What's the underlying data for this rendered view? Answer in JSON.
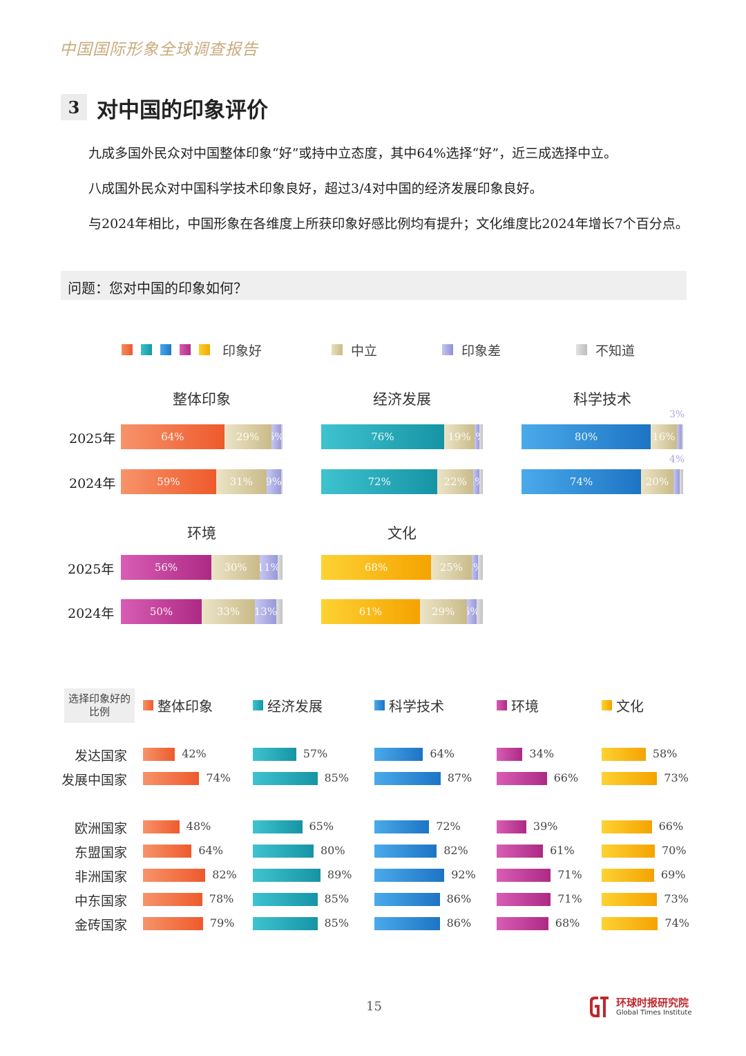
{
  "header": {
    "title": "中国国际形象全球调查报告"
  },
  "section": {
    "number": "3",
    "title": "对中国的印象评价"
  },
  "paragraphs": [
    "九成多国外民众对中国整体印象“好”或持中立态度，其中64%选择“好”，近三成选择中立。",
    "八成国外民众对中国科学技术印象良好，超过3/4对中国的经济发展印象良好。",
    "与2024年相比，中国形象在各维度上所获印象好感比例均有提升；文化维度比2024年增长7个百分点。"
  ],
  "question": "问题：您对中国的印象如何？",
  "legend": {
    "good": "印象好",
    "neutral": "中立",
    "bad": "印象差",
    "unknown": "不知道",
    "good_colors": [
      "#f2693f",
      "#1ea9b8",
      "#2b8ed6",
      "#c4399b",
      "#f7b90b"
    ]
  },
  "colors": {
    "neutral": "#d8cca0",
    "bad": "#a8a8e0",
    "unknown": "#d0d0d0"
  },
  "chart_data": [
    {
      "type": "bar",
      "stacked": true,
      "title": "整体印象",
      "categories": [
        "2025年",
        "2024年"
      ],
      "series": [
        {
          "name": "印象好",
          "values": [
            64,
            59
          ]
        },
        {
          "name": "中立",
          "values": [
            29,
            31
          ]
        },
        {
          "name": "印象差",
          "values": [
            6,
            9
          ]
        },
        {
          "name": "不知道",
          "values": [
            1,
            1
          ]
        }
      ],
      "labels": [
        [
          "64%",
          "29%",
          "6%",
          ""
        ],
        [
          "59%",
          "31%",
          "9%",
          ""
        ]
      ],
      "color": "#f2693f"
    },
    {
      "type": "bar",
      "stacked": true,
      "title": "经济发展",
      "categories": [
        "2025年",
        "2024年"
      ],
      "series": [
        {
          "name": "印象好",
          "values": [
            76,
            72
          ]
        },
        {
          "name": "中立",
          "values": [
            19,
            22
          ]
        },
        {
          "name": "印象差",
          "values": [
            3,
            4
          ]
        },
        {
          "name": "不知道",
          "values": [
            2,
            2
          ]
        }
      ],
      "labels": [
        [
          "76%",
          "19%",
          "3%",
          ""
        ],
        [
          "72%",
          "22%",
          "4%",
          ""
        ]
      ],
      "color": "#1ea9b8"
    },
    {
      "type": "bar",
      "stacked": true,
      "title": "科学技术",
      "categories": [
        "2025年",
        "2024年"
      ],
      "series": [
        {
          "name": "印象好",
          "values": [
            80,
            74
          ]
        },
        {
          "name": "中立",
          "values": [
            16,
            20
          ]
        },
        {
          "name": "印象差",
          "values": [
            3,
            4
          ]
        },
        {
          "name": "不知道",
          "values": [
            1,
            2
          ]
        }
      ],
      "labels": [
        [
          "80%",
          "16%",
          "",
          ""
        ],
        [
          "74%",
          "20%",
          "",
          ""
        ]
      ],
      "outside_labels": [
        "3%",
        "4%"
      ],
      "color": "#2b8ed6"
    },
    {
      "type": "bar",
      "stacked": true,
      "title": "环境",
      "categories": [
        "2025年",
        "2024年"
      ],
      "series": [
        {
          "name": "印象好",
          "values": [
            56,
            50
          ]
        },
        {
          "name": "中立",
          "values": [
            30,
            33
          ]
        },
        {
          "name": "印象差",
          "values": [
            11,
            13
          ]
        },
        {
          "name": "不知道",
          "values": [
            3,
            4
          ]
        }
      ],
      "labels": [
        [
          "56%",
          "30%",
          "11%",
          ""
        ],
        [
          "50%",
          "33%",
          "13%",
          ""
        ]
      ],
      "color": "#c4399b"
    },
    {
      "type": "bar",
      "stacked": true,
      "title": "文化",
      "categories": [
        "2025年",
        "2024年"
      ],
      "series": [
        {
          "name": "印象好",
          "values": [
            68,
            61
          ]
        },
        {
          "name": "中立",
          "values": [
            25,
            29
          ]
        },
        {
          "name": "印象差",
          "values": [
            4,
            6
          ]
        },
        {
          "name": "不知道",
          "values": [
            3,
            4
          ]
        }
      ],
      "labels": [
        [
          "68%",
          "25%",
          "4%",
          ""
        ],
        [
          "61%",
          "29%",
          "6%",
          ""
        ]
      ],
      "color": "#f7b90b"
    },
    {
      "type": "bar",
      "title": "",
      "tag": "选择印象好的比例",
      "categories": [
        "发达国家",
        "发展中国家",
        "欧洲国家",
        "东盟国家",
        "非洲国家",
        "中东国家",
        "金砖国家"
      ],
      "series": [
        {
          "name": "整体印象",
          "values": [
            42,
            74,
            48,
            64,
            82,
            78,
            79
          ],
          "color": "#f2693f"
        },
        {
          "name": "经济发展",
          "values": [
            57,
            85,
            65,
            80,
            89,
            85,
            85
          ],
          "color": "#1ea9b8"
        },
        {
          "name": "科学技术",
          "values": [
            64,
            87,
            72,
            82,
            92,
            86,
            86
          ],
          "color": "#2b8ed6"
        },
        {
          "name": "环境",
          "values": [
            34,
            66,
            39,
            61,
            71,
            71,
            68
          ],
          "color": "#c4399b"
        },
        {
          "name": "文化",
          "values": [
            58,
            73,
            66,
            70,
            69,
            73,
            74
          ],
          "color": "#f7b90b"
        }
      ]
    }
  ],
  "page_number": "15",
  "logo": {
    "cn": "环球时报研究院",
    "en": "Global Times Institute"
  }
}
